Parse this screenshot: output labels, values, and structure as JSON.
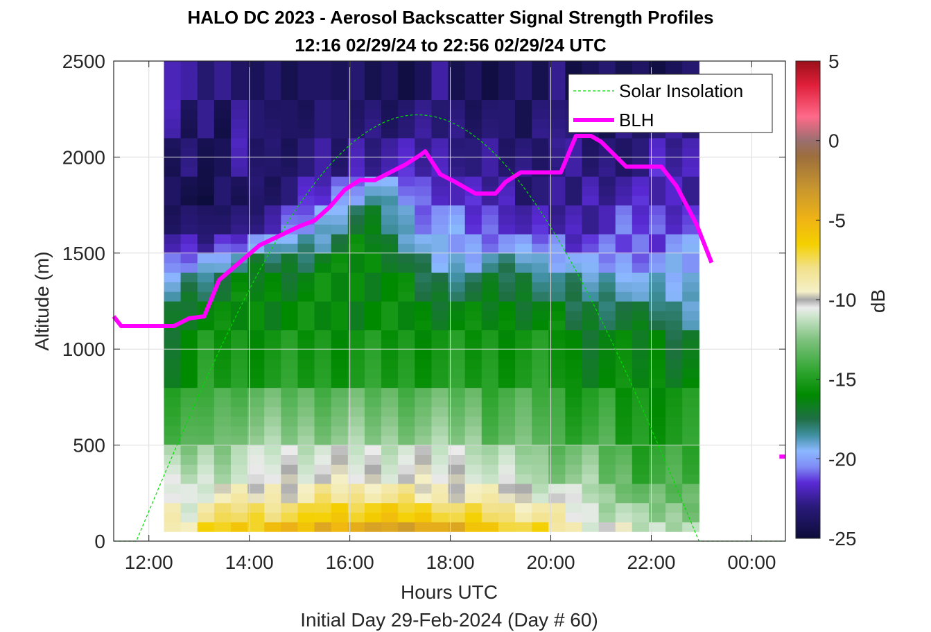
{
  "chart_data": {
    "type": "heatmap",
    "title": "HALO DC 2023 - Aerosol Backscatter Signal Strength Profiles",
    "subtitle": "12:16 02/29/24 to 22:56 02/29/24  UTC",
    "xlabel": "Hours UTC",
    "xlabel2": "Initial Day 29-Feb-2024 (Day # 60)",
    "ylabel": "Altitude (m)",
    "colorbar_label": "dB",
    "xlim_hours": [
      11.3,
      24.67
    ],
    "ylim": [
      0,
      2500
    ],
    "x_ticks": [
      12,
      14,
      16,
      18,
      20,
      22,
      24
    ],
    "x_tick_labels": [
      "12:00",
      "14:00",
      "16:00",
      "18:00",
      "20:00",
      "22:00",
      "00:00"
    ],
    "y_ticks": [
      0,
      500,
      1000,
      1500,
      2000,
      2500
    ],
    "y_tick_labels": [
      "0",
      "500",
      "1000",
      "1500",
      "2000",
      "2500"
    ],
    "clim": [
      -25,
      5
    ],
    "c_ticks": [
      5,
      0,
      -5,
      -10,
      -15,
      -20,
      -25
    ],
    "c_tick_labels": [
      "5",
      "0",
      "-5",
      "-10",
      "-15",
      "-20",
      "-25"
    ],
    "grid": true,
    "legend_position": "top-right",
    "legend": [
      "Solar Insolation",
      "BLH"
    ],
    "series": [
      {
        "name": "BLH",
        "color": "#ff00ff",
        "x": [
          11.3,
          11.45,
          12.0,
          12.5,
          12.8,
          13.1,
          13.4,
          13.8,
          14.2,
          14.6,
          15.0,
          15.3,
          15.6,
          15.9,
          16.2,
          16.5,
          16.8,
          17.1,
          17.4,
          17.5,
          17.8,
          18.1,
          18.5,
          18.9,
          19.1,
          19.4,
          19.8,
          20.2,
          20.5,
          20.8,
          21.0,
          21.5,
          22.2,
          22.5,
          22.9,
          23.2
        ],
        "y": [
          1170,
          1120,
          1120,
          1120,
          1160,
          1170,
          1360,
          1450,
          1540,
          1590,
          1640,
          1670,
          1740,
          1830,
          1880,
          1880,
          1920,
          1960,
          2010,
          2030,
          1910,
          1870,
          1810,
          1810,
          1870,
          1920,
          1920,
          1920,
          2110,
          2110,
          2080,
          1950,
          1950,
          1850,
          1650,
          1450
        ],
        "segment2_x": [
          24.55,
          24.67
        ],
        "segment2_y": [
          440,
          440
        ]
      },
      {
        "name": "Solar Insolation",
        "color": "#00dd00",
        "style": "dashed",
        "x_rise": 11.75,
        "x_set": 22.95,
        "peak_altitude": 2220,
        "baseline": 0
      }
    ],
    "heatmap": {
      "x_start": 12.3,
      "x_end": 22.95,
      "columns": 32,
      "altitude_levels": [
        100,
        200,
        300,
        500,
        800,
        1100,
        1250,
        1400,
        1500,
        1600,
        1750,
        1900,
        2100,
        2300,
        2500
      ],
      "column_dB_profiles": [
        [
          -8,
          -9,
          -10,
          -11,
          -14,
          -16,
          -17,
          -18,
          -21,
          -22,
          -23,
          -24,
          -24,
          -23,
          -22
        ],
        [
          -9,
          -10,
          -11,
          -11,
          -14,
          -16,
          -16,
          -17,
          -20,
          -22,
          -23,
          -24,
          -23,
          -24,
          -23
        ],
        [
          -7,
          -8,
          -10,
          -11,
          -13,
          -15,
          -16,
          -17,
          -19,
          -22,
          -24,
          -25,
          -24,
          -23,
          -23
        ],
        [
          -6,
          -8,
          -9,
          -11,
          -13,
          -15,
          -16,
          -17,
          -18,
          -21,
          -23,
          -24,
          -24,
          -24,
          -23
        ],
        [
          -6,
          -7,
          -9,
          -11,
          -12,
          -15,
          -16,
          -16,
          -18,
          -20,
          -23,
          -24,
          -23,
          -22,
          -23
        ],
        [
          -6,
          -7,
          -9,
          -11,
          -12,
          -15,
          -16,
          -16,
          -17,
          -19,
          -22,
          -24,
          -23,
          -24,
          -24
        ],
        [
          -5,
          -7,
          -9,
          -10,
          -12,
          -15,
          -16,
          -16,
          -17,
          -19,
          -22,
          -23,
          -24,
          -23,
          -24
        ],
        [
          -5,
          -7,
          -9,
          -10,
          -12,
          -15,
          -16,
          -16,
          -17,
          -18,
          -21,
          -23,
          -23,
          -24,
          -24
        ],
        [
          -5,
          -7,
          -9,
          -10,
          -12,
          -15,
          -16,
          -16,
          -17,
          -18,
          -20,
          -22,
          -23,
          -23,
          -24
        ],
        [
          -4,
          -6,
          -8,
          -10,
          -12,
          -15,
          -16,
          -16,
          -16,
          -18,
          -19,
          -21,
          -23,
          -23,
          -23
        ],
        [
          -4,
          -6,
          -8,
          -10,
          -12,
          -15,
          -16,
          -16,
          -16,
          -17,
          -18,
          -20,
          -23,
          -24,
          -24
        ],
        [
          -4,
          -6,
          -8,
          -10,
          -12,
          -15,
          -16,
          -16,
          -16,
          -16,
          -17,
          -19,
          -22,
          -23,
          -24
        ],
        [
          -4,
          -6,
          -8,
          -10,
          -12,
          -15,
          -16,
          -16,
          -16,
          -16,
          -17,
          -18,
          -22,
          -23,
          -24
        ],
        [
          -3,
          -6,
          -8,
          -10,
          -12,
          -15,
          -16,
          -16,
          -16,
          -17,
          -18,
          -19,
          -22,
          -23,
          -24
        ],
        [
          -3,
          -6,
          -8,
          -10,
          -12,
          -15,
          -16,
          -16,
          -17,
          -18,
          -19,
          -20,
          -22,
          -23,
          -24
        ],
        [
          -3,
          -6,
          -9,
          -10,
          -12,
          -15,
          -16,
          -17,
          -18,
          -19,
          -20,
          -21,
          -22,
          -23,
          -24
        ],
        [
          -4,
          -6,
          -9,
          -10,
          -12,
          -15,
          -16,
          -17,
          -19,
          -20,
          -20,
          -21,
          -22,
          -23,
          -23
        ],
        [
          -4,
          -7,
          -9,
          -10,
          -12,
          -15,
          -16,
          -17,
          -19,
          -20,
          -20,
          -22,
          -22,
          -23,
          -24
        ],
        [
          -5,
          -7,
          -9,
          -10,
          -12,
          -15,
          -16,
          -17,
          -19,
          -20,
          -21,
          -22,
          -23,
          -23,
          -24
        ],
        [
          -6,
          -7,
          -9,
          -11,
          -13,
          -15,
          -16,
          -17,
          -18,
          -20,
          -21,
          -22,
          -23,
          -23,
          -24
        ],
        [
          -6,
          -8,
          -9,
          -11,
          -13,
          -15,
          -16,
          -17,
          -18,
          -20,
          -21,
          -22,
          -23,
          -24,
          -24
        ],
        [
          -7,
          -8,
          -10,
          -11,
          -13,
          -15,
          -16,
          -17,
          -18,
          -20,
          -22,
          -23,
          -23,
          -24,
          -24
        ],
        [
          -7,
          -8,
          -10,
          -12,
          -13,
          -15,
          -16,
          -17,
          -19,
          -20,
          -22,
          -23,
          -23,
          -23,
          -24
        ],
        [
          -8,
          -9,
          -10,
          -12,
          -14,
          -15,
          -16,
          -18,
          -19,
          -20,
          -22,
          -23,
          -23,
          -22,
          -23
        ],
        [
          -9,
          -10,
          -11,
          -12,
          -14,
          -16,
          -17,
          -18,
          -19,
          -21,
          -22,
          -23,
          -23,
          -23,
          -24
        ],
        [
          -10,
          -11,
          -11,
          -12,
          -14,
          -16,
          -17,
          -18,
          -20,
          -21,
          -22,
          -22,
          -23,
          -24,
          -24
        ],
        [
          -10,
          -11,
          -12,
          -13,
          -14,
          -16,
          -17,
          -18,
          -20,
          -21,
          -22,
          -22,
          -23,
          -24,
          -24
        ],
        [
          -10,
          -11,
          -12,
          -13,
          -15,
          -16,
          -17,
          -18,
          -20,
          -21,
          -21,
          -22,
          -23,
          -23,
          -24
        ],
        [
          -11,
          -12,
          -13,
          -14,
          -15,
          -16,
          -17,
          -19,
          -20,
          -21,
          -21,
          -22,
          -23,
          -23,
          -24
        ],
        [
          -11,
          -12,
          -13,
          -14,
          -15,
          -16,
          -17,
          -19,
          -20,
          -21,
          -21,
          -22,
          -22,
          -23,
          -24
        ],
        [
          -11,
          -12,
          -13,
          -14,
          -15,
          -16,
          -18,
          -19,
          -20,
          -20,
          -21,
          -22,
          -22,
          -23,
          -24
        ],
        [
          -11,
          -12,
          -13,
          -14,
          -15,
          -16,
          -18,
          -19,
          -20,
          -20,
          -21,
          -22,
          -22,
          -23,
          -24
        ]
      ]
    },
    "colormap_stops": [
      {
        "v": -25,
        "c": "#0c0c3a"
      },
      {
        "v": -23,
        "c": "#2a1a7a"
      },
      {
        "v": -21.5,
        "c": "#5a2ad6"
      },
      {
        "v": -20.5,
        "c": "#7f8cf5"
      },
      {
        "v": -19.5,
        "c": "#8bb8ff"
      },
      {
        "v": -18.5,
        "c": "#3f8fa0"
      },
      {
        "v": -17.5,
        "c": "#1f6f45"
      },
      {
        "v": -16,
        "c": "#008a00"
      },
      {
        "v": -14.5,
        "c": "#2fa52f"
      },
      {
        "v": -12.5,
        "c": "#7fc27f"
      },
      {
        "v": -11,
        "c": "#cfe6cf"
      },
      {
        "v": -10.5,
        "c": "#ebebeb"
      },
      {
        "v": -10,
        "c": "#a8a8a8"
      },
      {
        "v": -9.5,
        "c": "#f5f0c8"
      },
      {
        "v": -8,
        "c": "#f2e18a"
      },
      {
        "v": -6.5,
        "c": "#f4d000"
      },
      {
        "v": -5,
        "c": "#f0b414"
      },
      {
        "v": -3,
        "c": "#c8962e"
      },
      {
        "v": -1,
        "c": "#9c6e3c"
      },
      {
        "v": 0,
        "c": "#9a6f6f"
      },
      {
        "v": 1.5,
        "c": "#ff6a8a"
      },
      {
        "v": 3.5,
        "c": "#e01f3a"
      },
      {
        "v": 5,
        "c": "#9a1019"
      }
    ]
  }
}
